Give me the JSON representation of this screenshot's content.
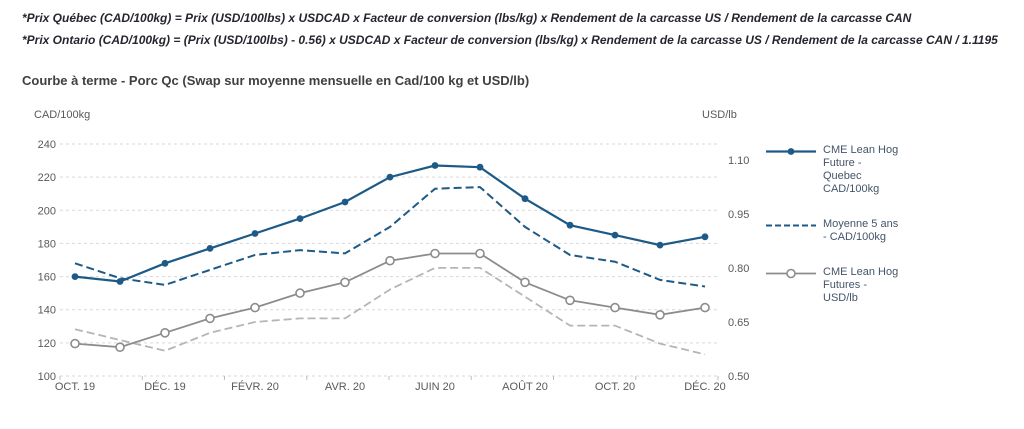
{
  "header": {
    "formula_quebec": "*Prix Québec (CAD/100kg) = Prix (USD/100lbs) x USDCAD x Facteur de conversion (lbs/kg) x Rendement de la carcasse US / Rendement de la carcasse CAN",
    "formula_ontario": "*Prix Ontario (CAD/100kg) = (Prix (USD/100lbs) - 0.56) x USDCAD x Facteur de conversion (lbs/kg) x Rendement de la carcasse US / Rendement de la carcasse CAN / 1.1195"
  },
  "chart_title": "Courbe à terme - Porc Qc (Swap sur moyenne mensuelle en Cad/100 kg et USD/lb)",
  "chart_data": {
    "type": "line",
    "n_points": 15,
    "x_tick_labels": [
      "OCT. 19",
      "DÉC. 19",
      "FÉVR. 20",
      "AVR. 20",
      "JUIN 20",
      "AOÛT 20",
      "OCT. 20",
      "DÉC. 20"
    ],
    "x_tick_positions": [
      0,
      2,
      4,
      6,
      8,
      10,
      12,
      14
    ],
    "left_axis": {
      "title": "CAD/100kg",
      "min": 100,
      "max": 240,
      "tick_values": [
        240,
        220,
        200,
        180,
        160,
        140,
        120,
        100
      ],
      "tick_labels": [
        "240",
        "220",
        "200",
        "180",
        "160",
        "140",
        "120",
        "100"
      ]
    },
    "right_axis": {
      "title": "USD/lb",
      "min": 0.5,
      "max": 1.144,
      "tick_values": [
        1.1,
        0.95,
        0.8,
        0.65,
        0.5
      ],
      "tick_labels": [
        "1.10",
        "0.95",
        "0.80",
        "0.65",
        "0.50"
      ]
    },
    "grid": true,
    "grid_color": "#d9d9d9",
    "axis_text_color": "#595959",
    "legend_position": "right",
    "series": [
      {
        "id": "cme-lean-hog-future-quebec-cad",
        "legend_label": "CME Lean Hog Future - Quebec CAD/100kg",
        "axis": "left",
        "color": "#1d5a87",
        "style": "solid",
        "marker": "filled-circle",
        "width": 2.2,
        "values": [
          160,
          157,
          168,
          177,
          186,
          195,
          205,
          220,
          227,
          226,
          207,
          191,
          185,
          179,
          184
        ]
      },
      {
        "id": "moyenne-5-ans-cad",
        "legend_label": "Moyenne 5 ans - CAD/100kg",
        "axis": "left",
        "color": "#1d5a87",
        "style": "dashed",
        "marker": "none",
        "width": 2,
        "values": [
          168,
          159,
          155,
          164,
          173,
          176,
          174,
          190,
          213,
          214,
          190,
          173,
          169,
          158,
          154
        ]
      },
      {
        "id": "cme-lean-hog-futures-usd",
        "legend_label": "CME Lean Hog Futures - USD/lb",
        "axis": "right",
        "color": "#8c8c8c",
        "style": "solid",
        "marker": "open-circle",
        "width": 1.8,
        "values": [
          0.59,
          0.58,
          0.62,
          0.66,
          0.69,
          0.73,
          0.76,
          0.82,
          0.84,
          0.84,
          0.76,
          0.71,
          0.69,
          0.67,
          0.69
        ]
      },
      {
        "id": "unlabeled-dashed-gray",
        "legend_label": null,
        "axis": "right",
        "color": "#b5b5b5",
        "style": "dashed",
        "marker": "none",
        "width": 1.8,
        "values": [
          0.63,
          0.6,
          0.57,
          0.62,
          0.65,
          0.66,
          0.66,
          0.74,
          0.8,
          0.8,
          0.72,
          0.64,
          0.64,
          0.59,
          0.56
        ]
      }
    ]
  }
}
